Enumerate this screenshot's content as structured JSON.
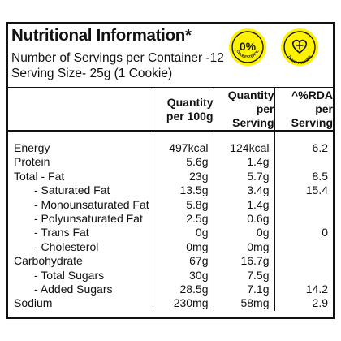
{
  "title": "Nutritional Information*",
  "servings_per_container": "Number of Servings per Container -12",
  "serving_size": "Serving Size- 25g (1 Cookie)",
  "badges": [
    {
      "main": "0%",
      "caption": "CHOLESTEROL",
      "color": "#fff200"
    },
    {
      "main": "",
      "caption": "TRANS FAT FREE",
      "color": "#fff200"
    }
  ],
  "headers": {
    "col1": [
      "Quantity",
      "per 100g"
    ],
    "col2": [
      "Quantity",
      "per Serving"
    ],
    "col3": [
      "^%RDA per",
      "Serving"
    ]
  },
  "rows": [
    {
      "name": "Energy",
      "per100": "497kcal",
      "perServing": "124kcal",
      "rda": "6.2",
      "indent": false
    },
    {
      "name": "Protein",
      "per100": "5.6g",
      "perServing": "1.4g",
      "rda": "",
      "indent": false
    },
    {
      "name": "Total - Fat",
      "per100": "23g",
      "perServing": "5.7g",
      "rda": "8.5",
      "indent": false
    },
    {
      "name": "- Saturated Fat",
      "per100": "13.5g",
      "perServing": "3.4g",
      "rda": "15.4",
      "indent": true
    },
    {
      "name": "- Monounsaturated Fat",
      "per100": "5.8g",
      "perServing": "1.4g",
      "rda": "",
      "indent": true
    },
    {
      "name": "- Polyunsaturated Fat",
      "per100": "2.5g",
      "perServing": "0.6g",
      "rda": "",
      "indent": true
    },
    {
      "name": "- Trans Fat",
      "per100": "0g",
      "perServing": "0g",
      "rda": "0",
      "indent": true
    },
    {
      "name": "- Cholesterol",
      "per100": "0mg",
      "perServing": "0mg",
      "rda": "",
      "indent": true
    },
    {
      "name": "Carbohydrate",
      "per100": "67g",
      "perServing": "16.7g",
      "rda": "",
      "indent": false
    },
    {
      "name": "- Total Sugars",
      "per100": "30g",
      "perServing": "7.5g",
      "rda": "",
      "indent": true
    },
    {
      "name": "- Added Sugars",
      "per100": "28.5g",
      "perServing": "7.1g",
      "rda": "14.2",
      "indent": true
    },
    {
      "name": "Sodium",
      "per100": "230mg",
      "perServing": "58mg",
      "rda": "2.9",
      "indent": false
    }
  ]
}
